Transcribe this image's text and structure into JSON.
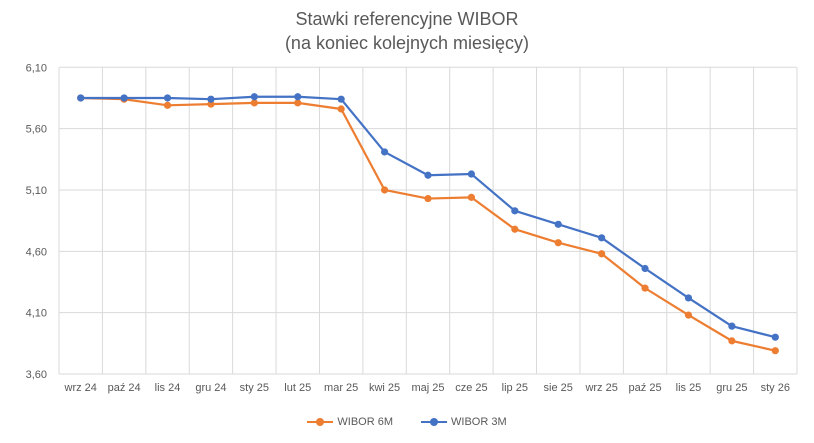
{
  "chart_data": {
    "type": "line",
    "title": "Stawki referencyjne WIBOR",
    "subtitle": "(na koniec kolejnych miesięcy)",
    "categories": [
      "wrz 24",
      "paź 24",
      "lis 24",
      "gru 24",
      "sty 25",
      "lut 25",
      "mar 25",
      "kwi 25",
      "maj 25",
      "cze 25",
      "lip 25",
      "sie 25",
      "wrz 25",
      "paź 25",
      "lis 25",
      "gru 25",
      "sty 26"
    ],
    "series": [
      {
        "name": "WIBOR 6M",
        "color": "#ED7D31",
        "values": [
          5.85,
          5.84,
          5.79,
          5.8,
          5.81,
          5.81,
          5.76,
          5.1,
          5.03,
          5.04,
          4.78,
          4.67,
          4.58,
          4.3,
          4.08,
          3.87,
          3.79
        ]
      },
      {
        "name": "WIBOR 3M",
        "color": "#4472C4",
        "values": [
          5.85,
          5.85,
          5.85,
          5.84,
          5.86,
          5.86,
          5.84,
          5.41,
          5.22,
          5.23,
          4.93,
          4.82,
          4.71,
          4.46,
          4.22,
          3.99,
          3.9
        ]
      }
    ],
    "yticks": [
      "3,60",
      "4,10",
      "4,60",
      "5,10",
      "5,60",
      "6,10"
    ],
    "ylim": [
      3.6,
      6.1
    ],
    "grid": true,
    "legend": "bottom"
  }
}
